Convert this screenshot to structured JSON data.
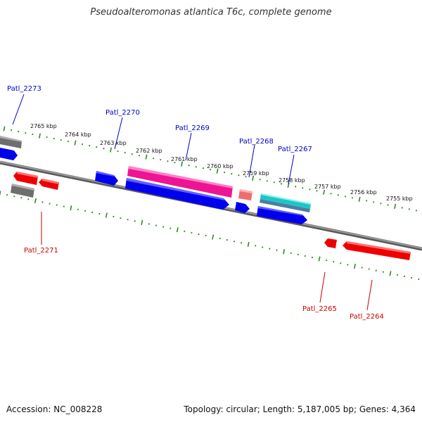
{
  "title": "Pseudoalteromonas atlantica T6c, complete genome",
  "accession": "Accession: NC_008228",
  "summary": "Topology: circular; Length: 5,187,005 bp; Genes: 4,364",
  "colors": {
    "backbone": "#808080",
    "tick": "#2e8b22",
    "forward_label": "#0000cc",
    "reverse_label": "#cc0000",
    "blue": "#0000ee",
    "red": "#ee0000",
    "magenta": "#ee1493",
    "gray": "#6e6e6e",
    "salmon": "#ee6e6e",
    "cyan": "#18c8c8",
    "steel": "#4a7fa0"
  },
  "scale": {
    "unit": "kbp",
    "labels": [
      "2765 kbp",
      "2764 kbp",
      "2763 kbp",
      "2762 kbp",
      "2761 kbp",
      "2760 kbp",
      "2759 kbp",
      "2758 kbp",
      "2757 kbp",
      "2756 kbp",
      "2755 kbp"
    ]
  },
  "gene_labels": [
    {
      "name": "Patl_2273",
      "strand": "forward"
    },
    {
      "name": "Patl_2270",
      "strand": "forward"
    },
    {
      "name": "Patl_2269",
      "strand": "forward"
    },
    {
      "name": "Patl_2268",
      "strand": "forward"
    },
    {
      "name": "Patl_2267",
      "strand": "forward"
    },
    {
      "name": "Patl_2271",
      "strand": "reverse"
    },
    {
      "name": "Patl_2265",
      "strand": "reverse"
    },
    {
      "name": "Patl_2264",
      "strand": "reverse"
    }
  ]
}
